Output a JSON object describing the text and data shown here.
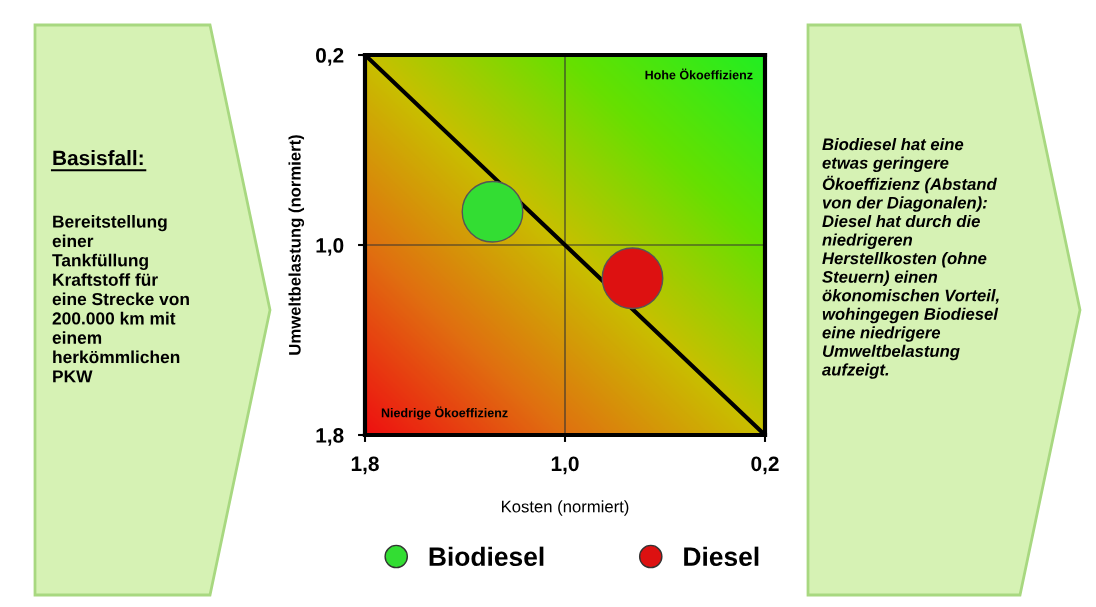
{
  "chart_data": {
    "type": "scatter",
    "xlabel": "Kosten (normiert)",
    "ylabel": "Umweltbelastung (normiert)",
    "xlim": [
      1.8,
      0.2
    ],
    "ylim": [
      1.8,
      0.2
    ],
    "xticks": [
      {
        "value": 1.8,
        "label": "1,8"
      },
      {
        "value": 1.0,
        "label": "1,0"
      },
      {
        "value": 0.2,
        "label": "0,2"
      }
    ],
    "yticks": [
      {
        "value": 1.8,
        "label": "1,8"
      },
      {
        "value": 1.0,
        "label": "1,0"
      },
      {
        "value": 0.2,
        "label": "0,2"
      }
    ],
    "series": [
      {
        "name": "Biodiesel",
        "color": "#33dd33",
        "marker": "circle",
        "x": [
          1.29
        ],
        "values": [
          0.86
        ]
      },
      {
        "name": "Diesel",
        "color": "#dd1111",
        "marker": "circle",
        "x": [
          0.73
        ],
        "values": [
          1.14
        ]
      },
      {
        "type": "line",
        "color": "#000000",
        "marker": "none",
        "x": [
          1.8,
          0.2
        ],
        "values": [
          0.2,
          1.8
        ]
      }
    ],
    "annotations": [
      "Hohe Ökoeffizienz",
      "Niedrige Ökoeffizienz",
      "Basisfall:",
      "Bereitstellung\neiner\nTankfüllung\nKraftstoff für\neine Strecke von\n200.000 km mit\neinem\nherkömmlichen\nPKW",
      "Biodiesel hat eine\netwas geringere\nÖkoeffizienz (Abstand\nvon der Diagonalen):\nDiesel hat durch die\nniedrigeren\nHerstellkosten (ohne\nSteuern) einen\nökonomischen Vorteil,\nwohingegen Biodiesel\neine niedrigere\nUmweltbelastung\naufzeigt."
    ],
    "legend": "bottom",
    "grid": true
  }
}
